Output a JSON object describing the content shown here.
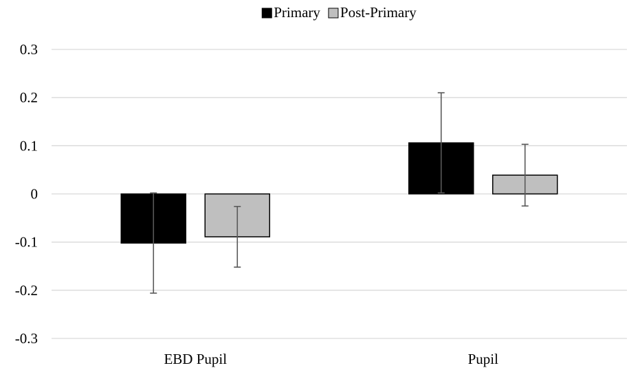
{
  "chart_data": {
    "type": "bar",
    "categories": [
      "EBD Pupil",
      "Pupil"
    ],
    "series": [
      {
        "name": "Primary",
        "color": "#000000",
        "values": [
          -0.102,
          0.106
        ],
        "error": [
          0.104,
          0.104
        ]
      },
      {
        "name": "Post-Primary",
        "color": "#bfbfbf",
        "values": [
          -0.089,
          0.039
        ],
        "error": [
          0.063,
          0.064
        ]
      }
    ],
    "ylim": [
      -0.3,
      0.3
    ],
    "yticks": [
      "0.3",
      "0.2",
      "0.1",
      "0",
      "-0.1",
      "-0.2",
      "-0.3"
    ],
    "ytick_values": [
      0.3,
      0.2,
      0.1,
      0,
      -0.1,
      -0.2,
      -0.3
    ],
    "grid": true,
    "legend_position": "top",
    "title": "",
    "xlabel": "",
    "ylabel": ""
  }
}
